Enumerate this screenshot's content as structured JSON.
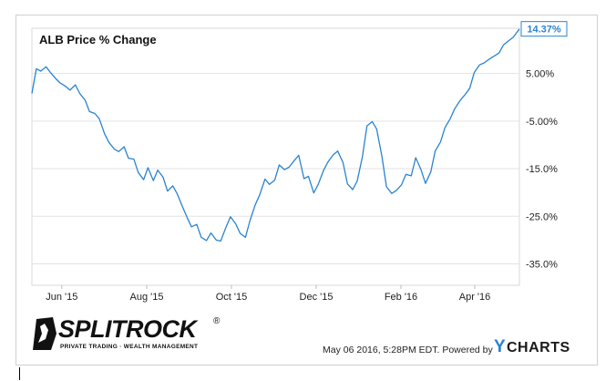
{
  "chart_data": {
    "type": "line",
    "title": "ALB Price % Change",
    "xlabel": "",
    "ylabel": "",
    "x_ticks": [
      "Jun '15",
      "Aug '15",
      "Oct '15",
      "Dec '15",
      "Feb '16",
      "Apr '16"
    ],
    "y_ticks": [
      "5.00%",
      "-5.00%",
      "-15.0%",
      "-25.0%",
      "-35.0%"
    ],
    "ylim": [
      -39.5,
      14.5
    ],
    "last_value_label": "14.37%",
    "grid": "horizontal",
    "line_color": "#2a83d1",
    "series": [
      {
        "values": [
          [
            0,
            0.8
          ],
          [
            0.5,
            6.0
          ],
          [
            1,
            5.5
          ],
          [
            1.6,
            6.4
          ],
          [
            2.1,
            5.2
          ],
          [
            2.7,
            3.9
          ],
          [
            3.2,
            3.0
          ],
          [
            3.8,
            2.3
          ],
          [
            4.3,
            1.5
          ],
          [
            4.9,
            2.6
          ],
          [
            5.4,
            0.8
          ],
          [
            6.0,
            -0.6
          ],
          [
            6.5,
            -3.0
          ],
          [
            7.1,
            -3.4
          ],
          [
            7.6,
            -4.5
          ],
          [
            8.2,
            -7.7
          ],
          [
            8.7,
            -9.5
          ],
          [
            9.3,
            -10.9
          ],
          [
            9.8,
            -11.4
          ],
          [
            10.4,
            -10.4
          ],
          [
            10.9,
            -12.8
          ],
          [
            11.5,
            -13.0
          ],
          [
            12.0,
            -15.8
          ],
          [
            12.6,
            -17.3
          ],
          [
            13.1,
            -14.8
          ],
          [
            13.7,
            -17.5
          ],
          [
            14.2,
            -15.3
          ],
          [
            14.8,
            -16.8
          ],
          [
            15.3,
            -19.7
          ],
          [
            15.9,
            -18.6
          ],
          [
            16.4,
            -20.3
          ],
          [
            16.9,
            -22.6
          ],
          [
            17.5,
            -25.2
          ],
          [
            18.0,
            -27.2
          ],
          [
            18.6,
            -26.7
          ],
          [
            19.1,
            -29.4
          ],
          [
            19.7,
            -30.1
          ],
          [
            20.2,
            -28.5
          ],
          [
            20.8,
            -30.0
          ],
          [
            21.3,
            -30.2
          ],
          [
            21.9,
            -27.3
          ],
          [
            22.4,
            -25.1
          ],
          [
            23.0,
            -26.6
          ],
          [
            23.5,
            -28.6
          ],
          [
            24.1,
            -29.4
          ],
          [
            24.6,
            -25.9
          ],
          [
            25.2,
            -22.6
          ],
          [
            25.7,
            -20.5
          ],
          [
            26.3,
            -17.2
          ],
          [
            26.8,
            -18.3
          ],
          [
            27.4,
            -17.4
          ],
          [
            27.9,
            -14.2
          ],
          [
            28.5,
            -15.2
          ],
          [
            29.0,
            -14.7
          ],
          [
            29.6,
            -13.3
          ],
          [
            30.1,
            -12.2
          ],
          [
            30.7,
            -17.1
          ],
          [
            31.2,
            -16.6
          ],
          [
            31.8,
            -20.1
          ],
          [
            32.3,
            -18.3
          ],
          [
            32.9,
            -15.4
          ],
          [
            33.4,
            -13.6
          ],
          [
            34.0,
            -12.1
          ],
          [
            34.5,
            -11.3
          ],
          [
            35.1,
            -13.7
          ],
          [
            35.6,
            -18.2
          ],
          [
            36.2,
            -19.4
          ],
          [
            36.7,
            -17.6
          ],
          [
            37.3,
            -12.4
          ],
          [
            37.8,
            -6.0
          ],
          [
            38.4,
            -5.1
          ],
          [
            38.9,
            -6.7
          ],
          [
            39.5,
            -12.5
          ],
          [
            40.0,
            -18.8
          ],
          [
            40.6,
            -20.2
          ],
          [
            41.1,
            -19.6
          ],
          [
            41.7,
            -18.4
          ],
          [
            42.2,
            -16.2
          ],
          [
            42.8,
            -16.5
          ],
          [
            43.3,
            -12.7
          ],
          [
            43.9,
            -15.2
          ],
          [
            44.4,
            -18.1
          ],
          [
            45.0,
            -15.7
          ],
          [
            45.5,
            -11.3
          ],
          [
            46.1,
            -9.4
          ],
          [
            46.6,
            -6.4
          ],
          [
            47.2,
            -4.5
          ],
          [
            47.7,
            -2.4
          ],
          [
            48.3,
            -0.7
          ],
          [
            48.8,
            0.4
          ],
          [
            49.4,
            1.9
          ],
          [
            49.9,
            5.2
          ],
          [
            50.5,
            6.8
          ],
          [
            51.0,
            7.2
          ],
          [
            51.6,
            8.0
          ],
          [
            52.1,
            8.6
          ],
          [
            52.7,
            9.3
          ],
          [
            53.2,
            11.0
          ],
          [
            53.8,
            11.9
          ],
          [
            54.3,
            12.6
          ],
          [
            55.0,
            14.37
          ]
        ]
      }
    ]
  },
  "footer": {
    "timestamp": "May 06 2016, 5:28PM EDT.",
    "powered_by": "Powered by",
    "brand_y": "Y",
    "brand_rest": "CHARTS"
  },
  "logo": {
    "name": "SPLITROCK",
    "registered": "®",
    "tagline": "PRIVATE TRADING · WEALTH MANAGEMENT"
  }
}
